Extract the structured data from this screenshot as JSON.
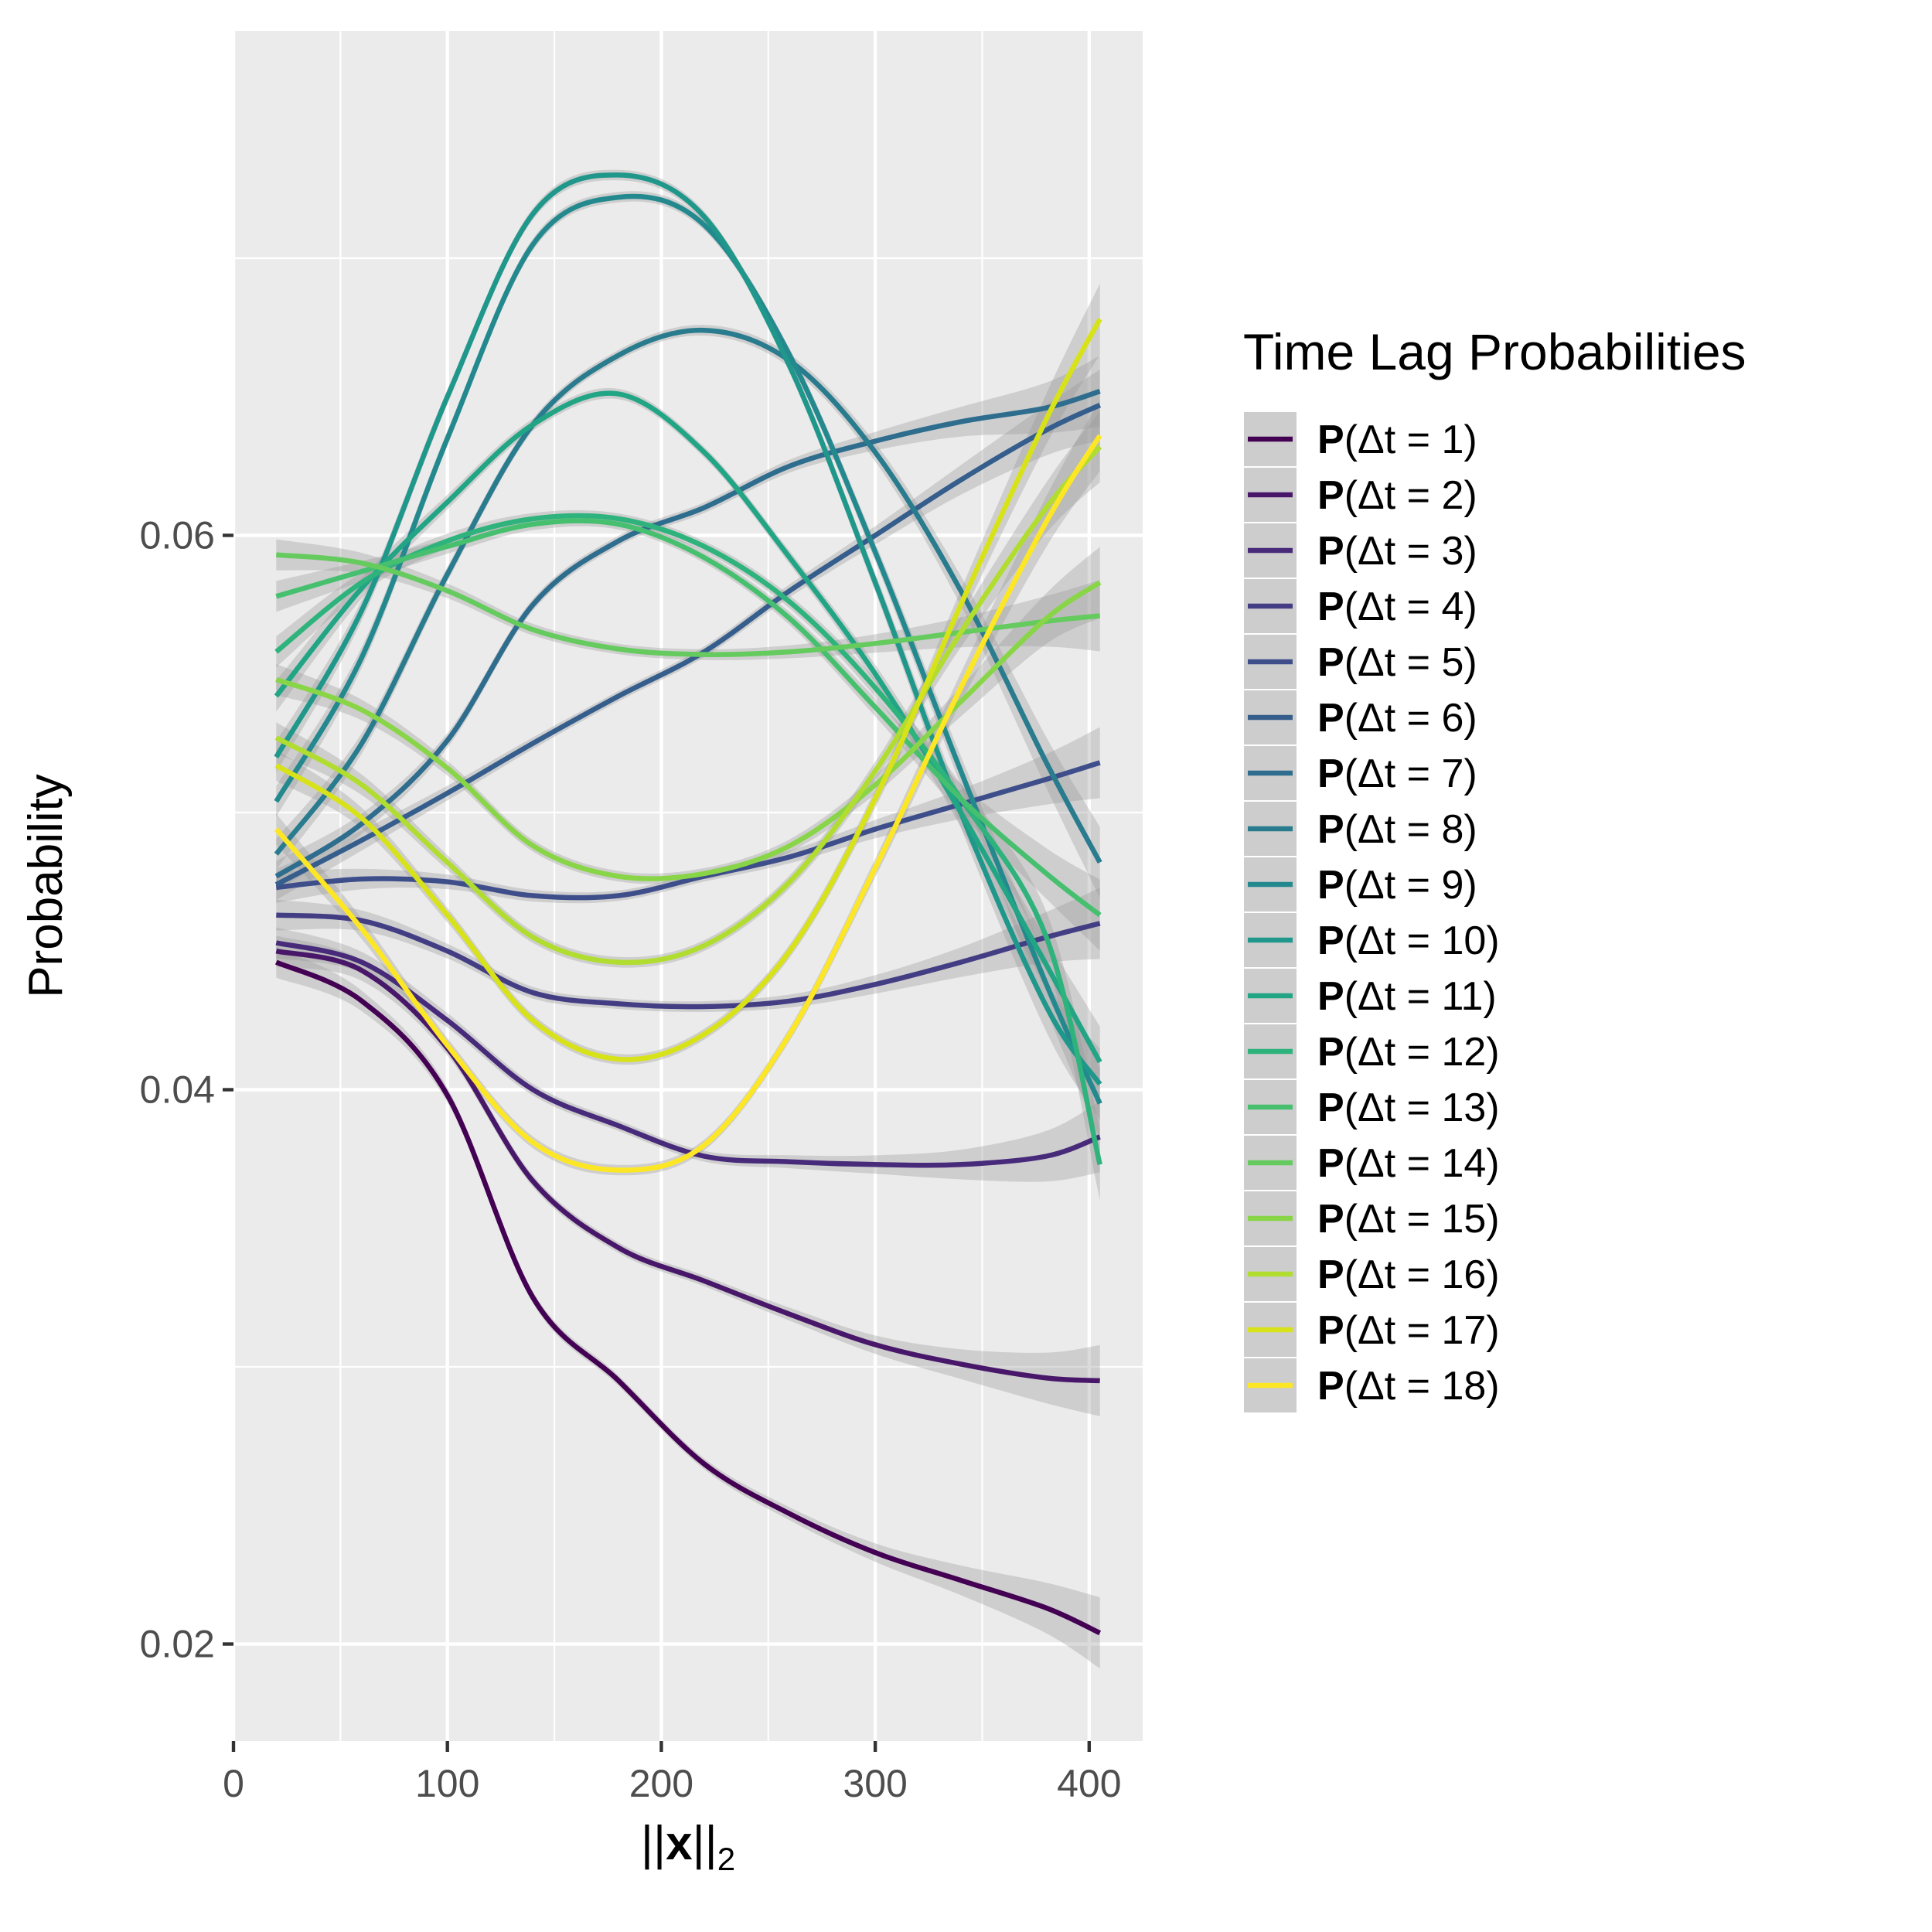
{
  "chart_data": {
    "type": "line",
    "title": "",
    "xlabel": "||x||2",
    "ylabel": "Probability",
    "xlim": [
      0,
      425
    ],
    "ylim": [
      0.0165,
      0.0782
    ],
    "x_ticks": [
      0,
      100,
      200,
      300,
      400
    ],
    "y_ticks": [
      0.02,
      0.04,
      0.06
    ],
    "x_tick_labels": [
      "0",
      "100",
      "200",
      "300",
      "400"
    ],
    "y_tick_labels": [
      "0.02",
      "0.04",
      "0.06"
    ],
    "grid": true,
    "confidence_bands": true,
    "legend": {
      "title": "Time Lag Probabilities",
      "position": "right"
    },
    "x": [
      20,
      60,
      100,
      140,
      180,
      220,
      260,
      300,
      340,
      380,
      405
    ],
    "series": [
      {
        "name": "P(Δt = 1)",
        "color": "#440154",
        "values": [
          0.0446,
          0.0432,
          0.0398,
          0.0325,
          0.0295,
          0.0265,
          0.0247,
          0.0233,
          0.0223,
          0.0213,
          0.0204
        ]
      },
      {
        "name": "P(Δt = 2)",
        "color": "#481769",
        "values": [
          0.045,
          0.0443,
          0.0415,
          0.0367,
          0.0343,
          0.0331,
          0.0319,
          0.0308,
          0.0301,
          0.0296,
          0.0295
        ]
      },
      {
        "name": "P(Δt = 3)",
        "color": "#472A7A",
        "values": [
          0.0453,
          0.0446,
          0.0425,
          0.04,
          0.0387,
          0.0376,
          0.0374,
          0.0373,
          0.0373,
          0.0376,
          0.0383
        ]
      },
      {
        "name": "P(Δt = 4)",
        "color": "#433D84",
        "values": [
          0.0463,
          0.0461,
          0.045,
          0.0435,
          0.0431,
          0.043,
          0.0432,
          0.0438,
          0.0446,
          0.0455,
          0.046
        ]
      },
      {
        "name": "P(Δt = 5)",
        "color": "#3D4E8A",
        "values": [
          0.0473,
          0.0476,
          0.0475,
          0.047,
          0.047,
          0.0477,
          0.0484,
          0.0494,
          0.0503,
          0.0512,
          0.0518
        ]
      },
      {
        "name": "P(Δt = 6)",
        "color": "#355E8D",
        "values": [
          0.0474,
          0.049,
          0.0507,
          0.0525,
          0.0542,
          0.0558,
          0.058,
          0.06,
          0.062,
          0.0638,
          0.0647
        ]
      },
      {
        "name": "P(Δt = 7)",
        "color": "#2E6D8E",
        "values": [
          0.0477,
          0.0496,
          0.0526,
          0.0575,
          0.0598,
          0.061,
          0.0625,
          0.0634,
          0.0641,
          0.0646,
          0.0652
        ]
      },
      {
        "name": "P(Δt = 8)",
        "color": "#297B8E",
        "values": [
          0.0485,
          0.0525,
          0.0586,
          0.064,
          0.0665,
          0.0674,
          0.0663,
          0.063,
          0.058,
          0.0518,
          0.0482
        ]
      },
      {
        "name": "P(Δt = 9)",
        "color": "#23898E",
        "values": [
          0.0504,
          0.0556,
          0.0635,
          0.0705,
          0.0722,
          0.0712,
          0.0665,
          0.0594,
          0.0515,
          0.0438,
          0.0395
        ]
      },
      {
        "name": "P(Δt = 10)",
        "color": "#1F978B",
        "values": [
          0.052,
          0.0573,
          0.065,
          0.0716,
          0.073,
          0.0715,
          0.0661,
          0.0583,
          0.05,
          0.043,
          0.0402
        ]
      },
      {
        "name": "P(Δt = 11)",
        "color": "#21A585",
        "values": [
          0.0542,
          0.0581,
          0.0612,
          0.064,
          0.0651,
          0.063,
          0.0592,
          0.055,
          0.05,
          0.0445,
          0.041
        ]
      },
      {
        "name": "P(Δt = 12)",
        "color": "#2EB37C",
        "values": [
          0.0558,
          0.0583,
          0.0598,
          0.0606,
          0.0606,
          0.0596,
          0.0576,
          0.0545,
          0.0505,
          0.0455,
          0.0373
        ]
      },
      {
        "name": "P(Δt = 13)",
        "color": "#46C06F",
        "values": [
          0.0578,
          0.0587,
          0.0596,
          0.0604,
          0.0604,
          0.0592,
          0.057,
          0.0538,
          0.0505,
          0.0478,
          0.0463
        ]
      },
      {
        "name": "P(Δt = 14)",
        "color": "#65CB5E",
        "values": [
          0.0593,
          0.059,
          0.058,
          0.0566,
          0.0559,
          0.0557,
          0.0558,
          0.0561,
          0.0565,
          0.0569,
          0.0571
        ]
      },
      {
        "name": "P(Δt = 15)",
        "color": "#89D548",
        "values": [
          0.0548,
          0.0537,
          0.0516,
          0.0488,
          0.0477,
          0.0478,
          0.0488,
          0.051,
          0.054,
          0.057,
          0.0583
        ]
      },
      {
        "name": "P(Δt = 16)",
        "color": "#B0DD2F",
        "values": [
          0.0527,
          0.051,
          0.0482,
          0.0455,
          0.0446,
          0.0452,
          0.0475,
          0.0515,
          0.0565,
          0.061,
          0.0632
        ]
      },
      {
        "name": "P(Δt = 17)",
        "color": "#D8E219",
        "values": [
          0.0517,
          0.0498,
          0.0463,
          0.0425,
          0.0411,
          0.042,
          0.045,
          0.0505,
          0.0575,
          0.0642,
          0.0678
        ]
      },
      {
        "name": "P(Δt = 18)",
        "color": "#FDE725",
        "values": [
          0.0494,
          0.0458,
          0.0416,
          0.0381,
          0.0371,
          0.038,
          0.042,
          0.048,
          0.0545,
          0.0605,
          0.0636
        ]
      }
    ]
  }
}
